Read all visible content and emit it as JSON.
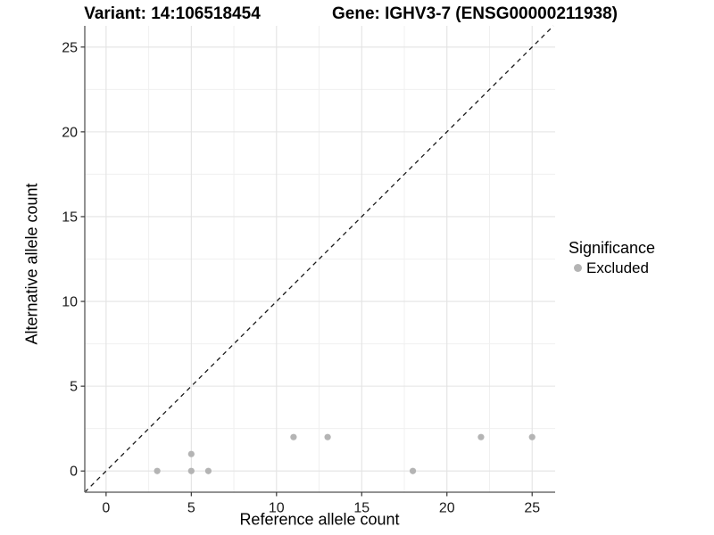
{
  "titles": {
    "variant": "Variant: 14:106518454",
    "gene": "Gene: IGHV3-7 (ENSG00000211938)"
  },
  "legend": {
    "title": "Significance",
    "items": [
      {
        "label": "Excluded",
        "color": "#b4b4b4"
      }
    ]
  },
  "chart_data": {
    "type": "scatter",
    "title_left": "Variant: 14:106518454",
    "title_right": "Gene: IGHV3-7 (ENSG00000211938)",
    "xlabel": "Reference allele count",
    "ylabel": "Alternative allele count",
    "xlim": [
      -1.25,
      26.35
    ],
    "ylim": [
      -1.25,
      26.25
    ],
    "x_ticks": [
      0,
      5,
      10,
      15,
      20,
      25
    ],
    "y_ticks": [
      0,
      5,
      10,
      15,
      20,
      25
    ],
    "x_minor_ticks": [
      2.5,
      7.5,
      12.5,
      17.5,
      22.5
    ],
    "y_minor_ticks": [
      2.5,
      7.5,
      12.5,
      17.5,
      22.5
    ],
    "grid": true,
    "legend_position": "right",
    "legend_title": "Significance",
    "series": [
      {
        "name": "Excluded",
        "color": "#b4b4b4",
        "points": [
          [
            3,
            0
          ],
          [
            5,
            0
          ],
          [
            5,
            1
          ],
          [
            6,
            0
          ],
          [
            11,
            2
          ],
          [
            13,
            2
          ],
          [
            18,
            0
          ],
          [
            22,
            2
          ],
          [
            25,
            2
          ]
        ]
      }
    ],
    "identity_line": {
      "style": "dashed",
      "color": "#1a1a1a",
      "from": [
        -1.25,
        -1.25
      ],
      "to": [
        26.25,
        26.25
      ]
    }
  },
  "colors": {
    "point": "#b4b4b4",
    "identity_line": "#1a1a1a",
    "grid_major": "#e3e3e3",
    "grid_minor": "#f0f0f0",
    "axis_line": "#6e6e6e",
    "tick_mark": "#333333",
    "tick_label": "#1a1a1a",
    "background": "#ffffff"
  }
}
